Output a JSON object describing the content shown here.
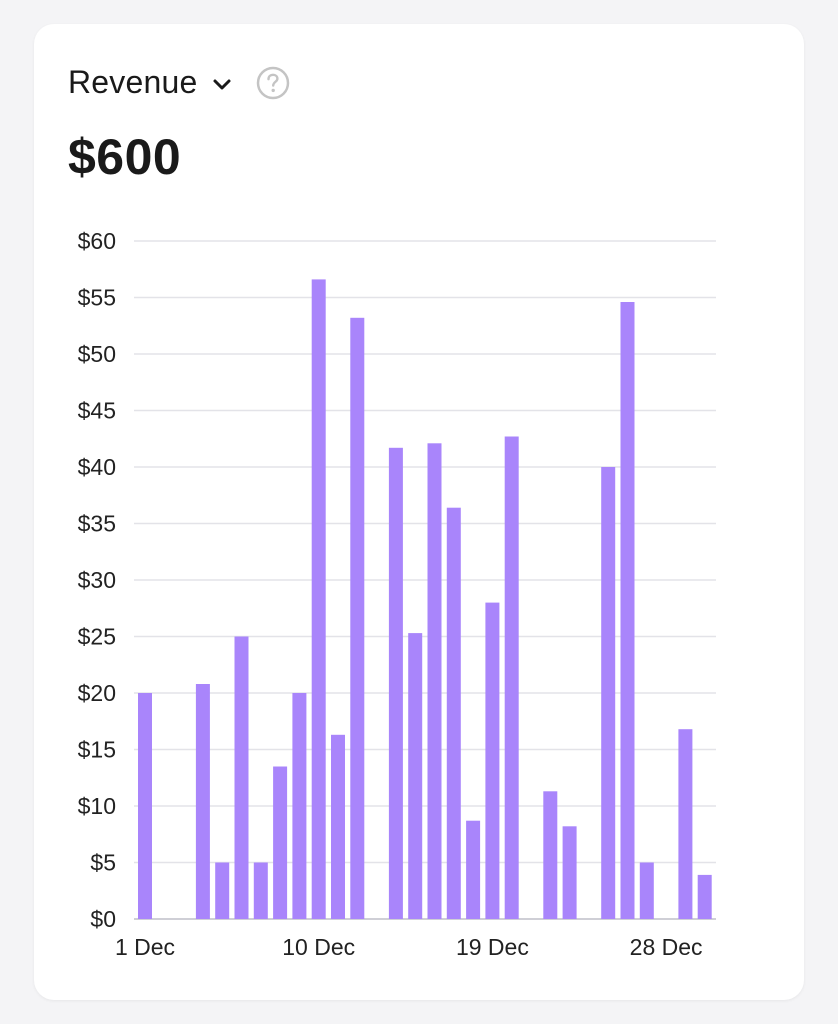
{
  "metric": {
    "label": "Revenue",
    "total": "$600"
  },
  "icons": {
    "dropdown": "chevron-down-icon",
    "help": "question-circle-icon"
  },
  "colors": {
    "bar": "#a985fb",
    "grid": "#e3e3e8",
    "axis": "#cfcfd6",
    "tick_text": "#222222"
  },
  "chart_data": {
    "type": "bar",
    "title": "",
    "xlabel": "",
    "ylabel": "",
    "ylim": [
      0,
      60
    ],
    "y_ticks": [
      "$0",
      "$5",
      "$10",
      "$15",
      "$20",
      "$25",
      "$30",
      "$35",
      "$40",
      "$45",
      "$50",
      "$55",
      "$60"
    ],
    "x_tick_labels": [
      "1 Dec",
      "10 Dec",
      "19 Dec",
      "28 Dec"
    ],
    "grid": true,
    "categories": [
      "1 Dec",
      "2 Dec",
      "3 Dec",
      "4 Dec",
      "5 Dec",
      "6 Dec",
      "7 Dec",
      "8 Dec",
      "9 Dec",
      "10 Dec",
      "11 Dec",
      "12 Dec",
      "13 Dec",
      "14 Dec",
      "15 Dec",
      "16 Dec",
      "17 Dec",
      "18 Dec",
      "19 Dec",
      "20 Dec",
      "21 Dec",
      "22 Dec",
      "23 Dec",
      "24 Dec",
      "25 Dec",
      "26 Dec",
      "27 Dec",
      "28 Dec",
      "29 Dec",
      "30 Dec",
      "31 Dec"
    ],
    "values": [
      20,
      0,
      0,
      20.8,
      5,
      25,
      5,
      13.5,
      20,
      56.6,
      16.3,
      53.2,
      0,
      41.7,
      25.3,
      42.1,
      36.4,
      8.7,
      28,
      42.7,
      0,
      11.3,
      8.2,
      0,
      40,
      54.6,
      5,
      0,
      16.8,
      3.9,
      0
    ]
  }
}
